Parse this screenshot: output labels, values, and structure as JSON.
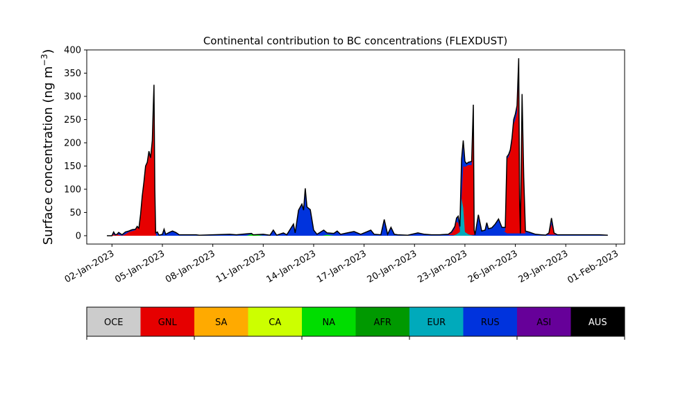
{
  "chart_data": {
    "type": "area",
    "title": "Continental contribution to BC concentrations (FLEXDUST)",
    "ylabel_main": "Surface concentration (ng m",
    "ylabel_sup": "−3",
    "ylabel_close": ")",
    "xlabel": "",
    "ylim": [
      -18,
      400
    ],
    "xlim": [
      0.5,
      32.5
    ],
    "grid": false,
    "legend_placement": "bottom",
    "yticks": [
      0,
      50,
      100,
      150,
      200,
      250,
      300,
      350,
      400
    ],
    "xticks": [
      {
        "x": 2,
        "label": "02-Jan-2023"
      },
      {
        "x": 5,
        "label": "05-Jan-2023"
      },
      {
        "x": 8,
        "label": "08-Jan-2023"
      },
      {
        "x": 11,
        "label": "11-Jan-2023"
      },
      {
        "x": 14,
        "label": "14-Jan-2023"
      },
      {
        "x": 17,
        "label": "17-Jan-2023"
      },
      {
        "x": 20,
        "label": "20-Jan-2023"
      },
      {
        "x": 23,
        "label": "23-Jan-2023"
      },
      {
        "x": 26,
        "label": "26-Jan-2023"
      },
      {
        "x": 29,
        "label": "29-Jan-2023"
      },
      {
        "x": 32,
        "label": "01-Feb-2023"
      }
    ],
    "legend": [
      {
        "label": "OCE",
        "color": "#cccccc",
        "text_color": "#000000"
      },
      {
        "label": "GNL",
        "color": "#e60000",
        "text_color": "#000000"
      },
      {
        "label": "SA",
        "color": "#ffaa00",
        "text_color": "#000000"
      },
      {
        "label": "CA",
        "color": "#ccff00",
        "text_color": "#000000"
      },
      {
        "label": "NA",
        "color": "#00dd00",
        "text_color": "#000000"
      },
      {
        "label": "AFR",
        "color": "#009900",
        "text_color": "#000000"
      },
      {
        "label": "EUR",
        "color": "#00aabb",
        "text_color": "#000000"
      },
      {
        "label": "RUS",
        "color": "#0033dd",
        "text_color": "#000000"
      },
      {
        "label": "ASI",
        "color": "#660099",
        "text_color": "#000000"
      },
      {
        "label": "AUS",
        "color": "#000000",
        "text_color": "#ffffff"
      }
    ],
    "series": [
      {
        "name": "GNL",
        "color": "#e60000",
        "points": [
          [
            1.7,
            0
          ],
          [
            2.0,
            0
          ],
          [
            2.1,
            3
          ],
          [
            2.2,
            0
          ],
          [
            2.3,
            3
          ],
          [
            2.4,
            2
          ],
          [
            2.6,
            0
          ],
          [
            2.8,
            3
          ],
          [
            3.0,
            8
          ],
          [
            3.2,
            10
          ],
          [
            3.4,
            12
          ],
          [
            3.5,
            18
          ],
          [
            3.6,
            15
          ],
          [
            3.7,
            40
          ],
          [
            3.8,
            80
          ],
          [
            3.9,
            110
          ],
          [
            4.0,
            148
          ],
          [
            4.1,
            155
          ],
          [
            4.2,
            175
          ],
          [
            4.3,
            165
          ],
          [
            4.4,
            200
          ],
          [
            4.45,
            260
          ],
          [
            4.5,
            318
          ],
          [
            4.55,
            100
          ],
          [
            4.6,
            5
          ],
          [
            4.7,
            0
          ],
          [
            21.5,
            0
          ],
          [
            22.2,
            5
          ],
          [
            22.4,
            15
          ],
          [
            22.5,
            30
          ],
          [
            22.6,
            28
          ],
          [
            22.7,
            10
          ],
          [
            22.8,
            80
          ],
          [
            22.9,
            150
          ],
          [
            23.0,
            148
          ],
          [
            23.1,
            150
          ],
          [
            23.2,
            152
          ],
          [
            23.4,
            152
          ],
          [
            23.5,
            260
          ],
          [
            23.55,
            10
          ],
          [
            23.6,
            0
          ],
          [
            24.2,
            0
          ],
          [
            24.4,
            5
          ],
          [
            24.6,
            5
          ],
          [
            24.8,
            8
          ],
          [
            25.0,
            15
          ],
          [
            25.2,
            8
          ],
          [
            25.4,
            10
          ],
          [
            25.5,
            165
          ],
          [
            25.6,
            170
          ],
          [
            25.7,
            180
          ],
          [
            25.8,
            200
          ],
          [
            25.9,
            240
          ],
          [
            26.0,
            250
          ],
          [
            26.1,
            265
          ],
          [
            26.2,
            335
          ],
          [
            26.25,
            80
          ],
          [
            26.3,
            0
          ],
          [
            26.4,
            280
          ],
          [
            26.5,
            120
          ],
          [
            26.6,
            5
          ],
          [
            26.7,
            0
          ],
          [
            27.8,
            0
          ],
          [
            28.0,
            5
          ],
          [
            28.15,
            25
          ],
          [
            28.3,
            5
          ],
          [
            28.5,
            0
          ],
          [
            31.5,
            0
          ]
        ]
      },
      {
        "name": "RUS",
        "color": "#0033dd",
        "points": [
          [
            1.7,
            0
          ],
          [
            4.6,
            0
          ],
          [
            4.7,
            6
          ],
          [
            4.8,
            0
          ],
          [
            5.0,
            3
          ],
          [
            5.1,
            12
          ],
          [
            5.2,
            2
          ],
          [
            5.4,
            6
          ],
          [
            5.6,
            8
          ],
          [
            5.8,
            6
          ],
          [
            6.0,
            2
          ],
          [
            7.0,
            2
          ],
          [
            7.2,
            1
          ],
          [
            8.0,
            2
          ],
          [
            9.0,
            3
          ],
          [
            9.4,
            2
          ],
          [
            10.0,
            4
          ],
          [
            10.4,
            2
          ],
          [
            11.0,
            3
          ],
          [
            11.4,
            1
          ],
          [
            11.6,
            10
          ],
          [
            11.8,
            1
          ],
          [
            12.2,
            5
          ],
          [
            12.4,
            2
          ],
          [
            12.8,
            22
          ],
          [
            12.9,
            5
          ],
          [
            13.1,
            50
          ],
          [
            13.3,
            65
          ],
          [
            13.4,
            52
          ],
          [
            13.5,
            100
          ],
          [
            13.6,
            60
          ],
          [
            13.8,
            55
          ],
          [
            14.0,
            10
          ],
          [
            14.2,
            3
          ],
          [
            14.6,
            12
          ],
          [
            14.8,
            4
          ],
          [
            15.2,
            5
          ],
          [
            15.4,
            8
          ],
          [
            15.6,
            3
          ],
          [
            16.0,
            5
          ],
          [
            16.4,
            8
          ],
          [
            16.8,
            3
          ],
          [
            17.0,
            5
          ],
          [
            17.4,
            10
          ],
          [
            17.6,
            3
          ],
          [
            18.0,
            2
          ],
          [
            18.2,
            32
          ],
          [
            18.4,
            3
          ],
          [
            18.6,
            15
          ],
          [
            18.8,
            3
          ],
          [
            19.0,
            2
          ],
          [
            19.6,
            1
          ],
          [
            20.2,
            5
          ],
          [
            20.6,
            3
          ],
          [
            21.0,
            2
          ],
          [
            21.5,
            2
          ],
          [
            22.0,
            2
          ],
          [
            22.8,
            0
          ],
          [
            23.6,
            2
          ],
          [
            23.8,
            5
          ],
          [
            24.0,
            8
          ],
          [
            24.2,
            10
          ],
          [
            24.3,
            22
          ],
          [
            24.4,
            8
          ],
          [
            24.6,
            10
          ],
          [
            24.8,
            15
          ],
          [
            25.0,
            20
          ],
          [
            25.2,
            10
          ],
          [
            25.4,
            8
          ],
          [
            25.5,
            5
          ],
          [
            26.6,
            5
          ],
          [
            26.8,
            8
          ],
          [
            27.2,
            3
          ],
          [
            28.5,
            2
          ],
          [
            29.0,
            2
          ],
          [
            31.5,
            0
          ]
        ]
      },
      {
        "name": "EUR",
        "color": "#00aabb",
        "points": [
          [
            1.7,
            0
          ],
          [
            22.3,
            0
          ],
          [
            22.5,
            3
          ],
          [
            22.7,
            8
          ],
          [
            22.8,
            80
          ],
          [
            22.9,
            60
          ],
          [
            23.0,
            8
          ],
          [
            23.2,
            3
          ],
          [
            23.5,
            0
          ],
          [
            31.5,
            0
          ]
        ]
      },
      {
        "name": "NA",
        "color": "#00dd00",
        "points": [
          [
            1.7,
            0
          ],
          [
            10.0,
            0
          ],
          [
            10.3,
            3
          ],
          [
            10.6,
            2
          ],
          [
            11.0,
            0
          ],
          [
            14.5,
            0
          ],
          [
            14.8,
            2
          ],
          [
            15.2,
            0
          ],
          [
            31.5,
            0
          ]
        ]
      },
      {
        "name": "OCE",
        "color": "#cccccc",
        "points": [
          [
            1.7,
            0
          ],
          [
            31.5,
            0
          ]
        ]
      }
    ],
    "total": {
      "name": "AUS",
      "color": "#000000",
      "points": [
        [
          1.7,
          0
        ],
        [
          2.0,
          0
        ],
        [
          2.1,
          8
        ],
        [
          2.2,
          2
        ],
        [
          2.3,
          3
        ],
        [
          2.4,
          7
        ],
        [
          2.6,
          2
        ],
        [
          2.8,
          8
        ],
        [
          3.0,
          10
        ],
        [
          3.2,
          13
        ],
        [
          3.4,
          14
        ],
        [
          3.5,
          20
        ],
        [
          3.6,
          16
        ],
        [
          3.7,
          45
        ],
        [
          3.8,
          85
        ],
        [
          3.9,
          115
        ],
        [
          4.0,
          150
        ],
        [
          4.1,
          158
        ],
        [
          4.2,
          182
        ],
        [
          4.3,
          168
        ],
        [
          4.4,
          205
        ],
        [
          4.45,
          268
        ],
        [
          4.5,
          325
        ],
        [
          4.55,
          100
        ],
        [
          4.6,
          6
        ],
        [
          4.7,
          8
        ],
        [
          4.8,
          1
        ],
        [
          5.0,
          3
        ],
        [
          5.1,
          14
        ],
        [
          5.2,
          3
        ],
        [
          5.4,
          7
        ],
        [
          5.6,
          10
        ],
        [
          5.8,
          7
        ],
        [
          6.0,
          2
        ],
        [
          7.0,
          2
        ],
        [
          7.2,
          1
        ],
        [
          8.0,
          2
        ],
        [
          9.0,
          3
        ],
        [
          9.4,
          2
        ],
        [
          10.0,
          4
        ],
        [
          10.3,
          5
        ],
        [
          10.4,
          2
        ],
        [
          11.0,
          3
        ],
        [
          11.4,
          1
        ],
        [
          11.6,
          12
        ],
        [
          11.8,
          1
        ],
        [
          12.2,
          6
        ],
        [
          12.4,
          2
        ],
        [
          12.8,
          25
        ],
        [
          12.9,
          6
        ],
        [
          13.1,
          55
        ],
        [
          13.3,
          68
        ],
        [
          13.4,
          55
        ],
        [
          13.5,
          102
        ],
        [
          13.6,
          62
        ],
        [
          13.8,
          56
        ],
        [
          14.0,
          12
        ],
        [
          14.2,
          3
        ],
        [
          14.6,
          12
        ],
        [
          14.8,
          6
        ],
        [
          15.2,
          5
        ],
        [
          15.4,
          10
        ],
        [
          15.6,
          3
        ],
        [
          16.0,
          6
        ],
        [
          16.4,
          9
        ],
        [
          16.8,
          3
        ],
        [
          17.0,
          6
        ],
        [
          17.4,
          12
        ],
        [
          17.6,
          3
        ],
        [
          18.0,
          2
        ],
        [
          18.2,
          35
        ],
        [
          18.4,
          3
        ],
        [
          18.6,
          18
        ],
        [
          18.8,
          3
        ],
        [
          19.0,
          2
        ],
        [
          19.6,
          1
        ],
        [
          20.2,
          6
        ],
        [
          20.6,
          3
        ],
        [
          21.0,
          2
        ],
        [
          21.5,
          2
        ],
        [
          22.0,
          3
        ],
        [
          22.2,
          8
        ],
        [
          22.4,
          20
        ],
        [
          22.5,
          38
        ],
        [
          22.6,
          42
        ],
        [
          22.7,
          20
        ],
        [
          22.8,
          165
        ],
        [
          22.9,
          205
        ],
        [
          23.0,
          160
        ],
        [
          23.1,
          155
        ],
        [
          23.2,
          158
        ],
        [
          23.4,
          160
        ],
        [
          23.5,
          282
        ],
        [
          23.55,
          12
        ],
        [
          23.6,
          2
        ],
        [
          23.8,
          45
        ],
        [
          24.0,
          10
        ],
        [
          24.2,
          12
        ],
        [
          24.3,
          28
        ],
        [
          24.4,
          15
        ],
        [
          24.6,
          17
        ],
        [
          24.8,
          25
        ],
        [
          25.0,
          36
        ],
        [
          25.2,
          18
        ],
        [
          25.4,
          18
        ],
        [
          25.5,
          170
        ],
        [
          25.6,
          175
        ],
        [
          25.7,
          185
        ],
        [
          25.8,
          210
        ],
        [
          25.9,
          250
        ],
        [
          26.0,
          262
        ],
        [
          26.1,
          280
        ],
        [
          26.2,
          382
        ],
        [
          26.25,
          80
        ],
        [
          26.3,
          5
        ],
        [
          26.4,
          305
        ],
        [
          26.5,
          125
        ],
        [
          26.6,
          10
        ],
        [
          26.8,
          8
        ],
        [
          27.2,
          3
        ],
        [
          27.8,
          1
        ],
        [
          28.0,
          6
        ],
        [
          28.15,
          38
        ],
        [
          28.3,
          6
        ],
        [
          28.5,
          2
        ],
        [
          29.0,
          2
        ],
        [
          30.0,
          2
        ],
        [
          31.0,
          2
        ],
        [
          31.5,
          1
        ]
      ]
    }
  }
}
